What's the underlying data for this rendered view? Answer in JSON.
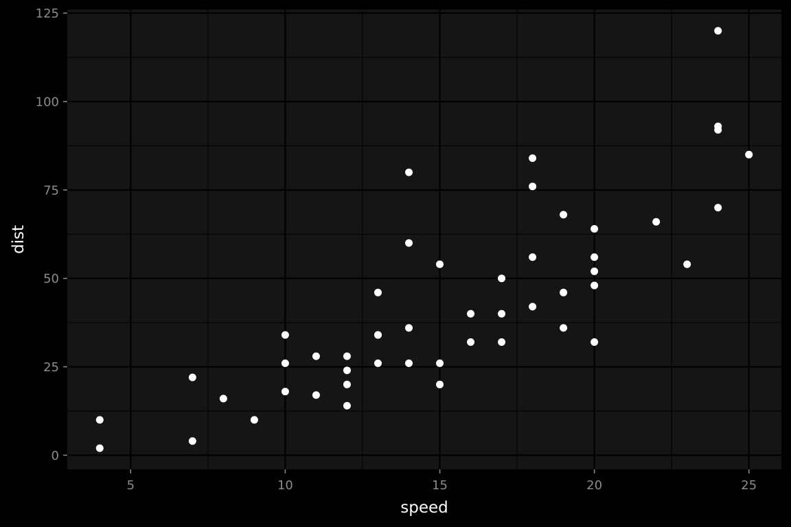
{
  "chart_data": {
    "type": "scatter",
    "title": "",
    "xlabel": "speed",
    "ylabel": "dist",
    "xlim": [
      2.95,
      26.05
    ],
    "ylim": [
      -4,
      126
    ],
    "x_ticks": [
      5,
      10,
      15,
      20,
      25
    ],
    "y_ticks": [
      0,
      25,
      50,
      75,
      100,
      125
    ],
    "x_tick_labels": [
      "5",
      "10",
      "15",
      "20",
      "25"
    ],
    "y_tick_labels": [
      "0",
      "25",
      "50",
      "75",
      "100",
      "125"
    ],
    "x_minor_ticks": [
      7.5,
      12.5,
      17.5,
      22.5
    ],
    "y_minor_ticks": [
      12.5,
      37.5,
      62.5,
      87.5,
      112.5
    ],
    "grid": true,
    "legend": "none",
    "colors": {
      "background": "#000000",
      "panel": "#151515",
      "grid_major": "#000000",
      "grid_minor": "#000000",
      "point": "#ffffff",
      "tick_label": "#8c8c8c",
      "axis_title": "#ffffff"
    },
    "series": [
      {
        "points": [
          [
            4,
            2
          ],
          [
            4,
            10
          ],
          [
            7,
            4
          ],
          [
            7,
            22
          ],
          [
            8,
            16
          ],
          [
            9,
            10
          ],
          [
            10,
            18
          ],
          [
            10,
            26
          ],
          [
            10,
            34
          ],
          [
            11,
            17
          ],
          [
            11,
            28
          ],
          [
            12,
            14
          ],
          [
            12,
            20
          ],
          [
            12,
            24
          ],
          [
            12,
            28
          ],
          [
            13,
            26
          ],
          [
            13,
            34
          ],
          [
            13,
            34
          ],
          [
            13,
            46
          ],
          [
            14,
            26
          ],
          [
            14,
            36
          ],
          [
            14,
            60
          ],
          [
            14,
            80
          ],
          [
            15,
            20
          ],
          [
            15,
            26
          ],
          [
            15,
            54
          ],
          [
            16,
            32
          ],
          [
            16,
            40
          ],
          [
            17,
            32
          ],
          [
            17,
            40
          ],
          [
            17,
            50
          ],
          [
            18,
            42
          ],
          [
            18,
            56
          ],
          [
            18,
            76
          ],
          [
            18,
            84
          ],
          [
            19,
            36
          ],
          [
            19,
            46
          ],
          [
            19,
            68
          ],
          [
            20,
            32
          ],
          [
            20,
            48
          ],
          [
            20,
            52
          ],
          [
            20,
            56
          ],
          [
            20,
            64
          ],
          [
            22,
            66
          ],
          [
            23,
            54
          ],
          [
            24,
            70
          ],
          [
            24,
            92
          ],
          [
            24,
            93
          ],
          [
            24,
            120
          ],
          [
            25,
            85
          ]
        ]
      }
    ]
  }
}
